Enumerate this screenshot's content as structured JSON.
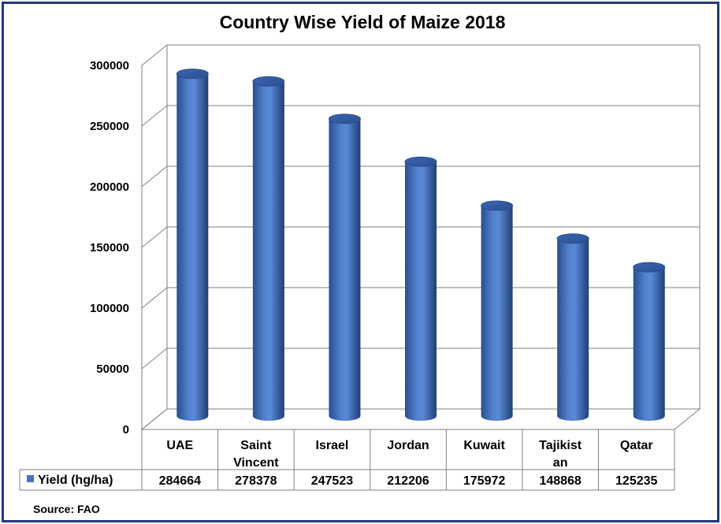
{
  "chart_data": {
    "type": "bar",
    "title": "Country Wise Yield of Maize 2018",
    "categories": [
      [
        "UAE"
      ],
      [
        "Saint",
        "Vincent"
      ],
      [
        "Israel"
      ],
      [
        "Jordan"
      ],
      [
        "Kuwait"
      ],
      [
        "Tajikist",
        "an"
      ],
      [
        "Qatar"
      ]
    ],
    "series": [
      {
        "name": "Yield (hg/ha)",
        "color": "#4472c4",
        "values": [
          284664,
          278378,
          247523,
          212206,
          175972,
          148868,
          125235
        ],
        "value_labels": [
          "284664",
          "278378",
          "247523",
          "212206",
          "175972",
          "148868",
          "125235"
        ]
      }
    ],
    "y_ticks": [
      "0",
      "50000",
      "100000",
      "150000",
      "200000",
      "250000",
      "300000"
    ],
    "ylim": [
      0,
      300000
    ],
    "grid": true,
    "legend": "data-table",
    "source": "Source: FAO"
  }
}
